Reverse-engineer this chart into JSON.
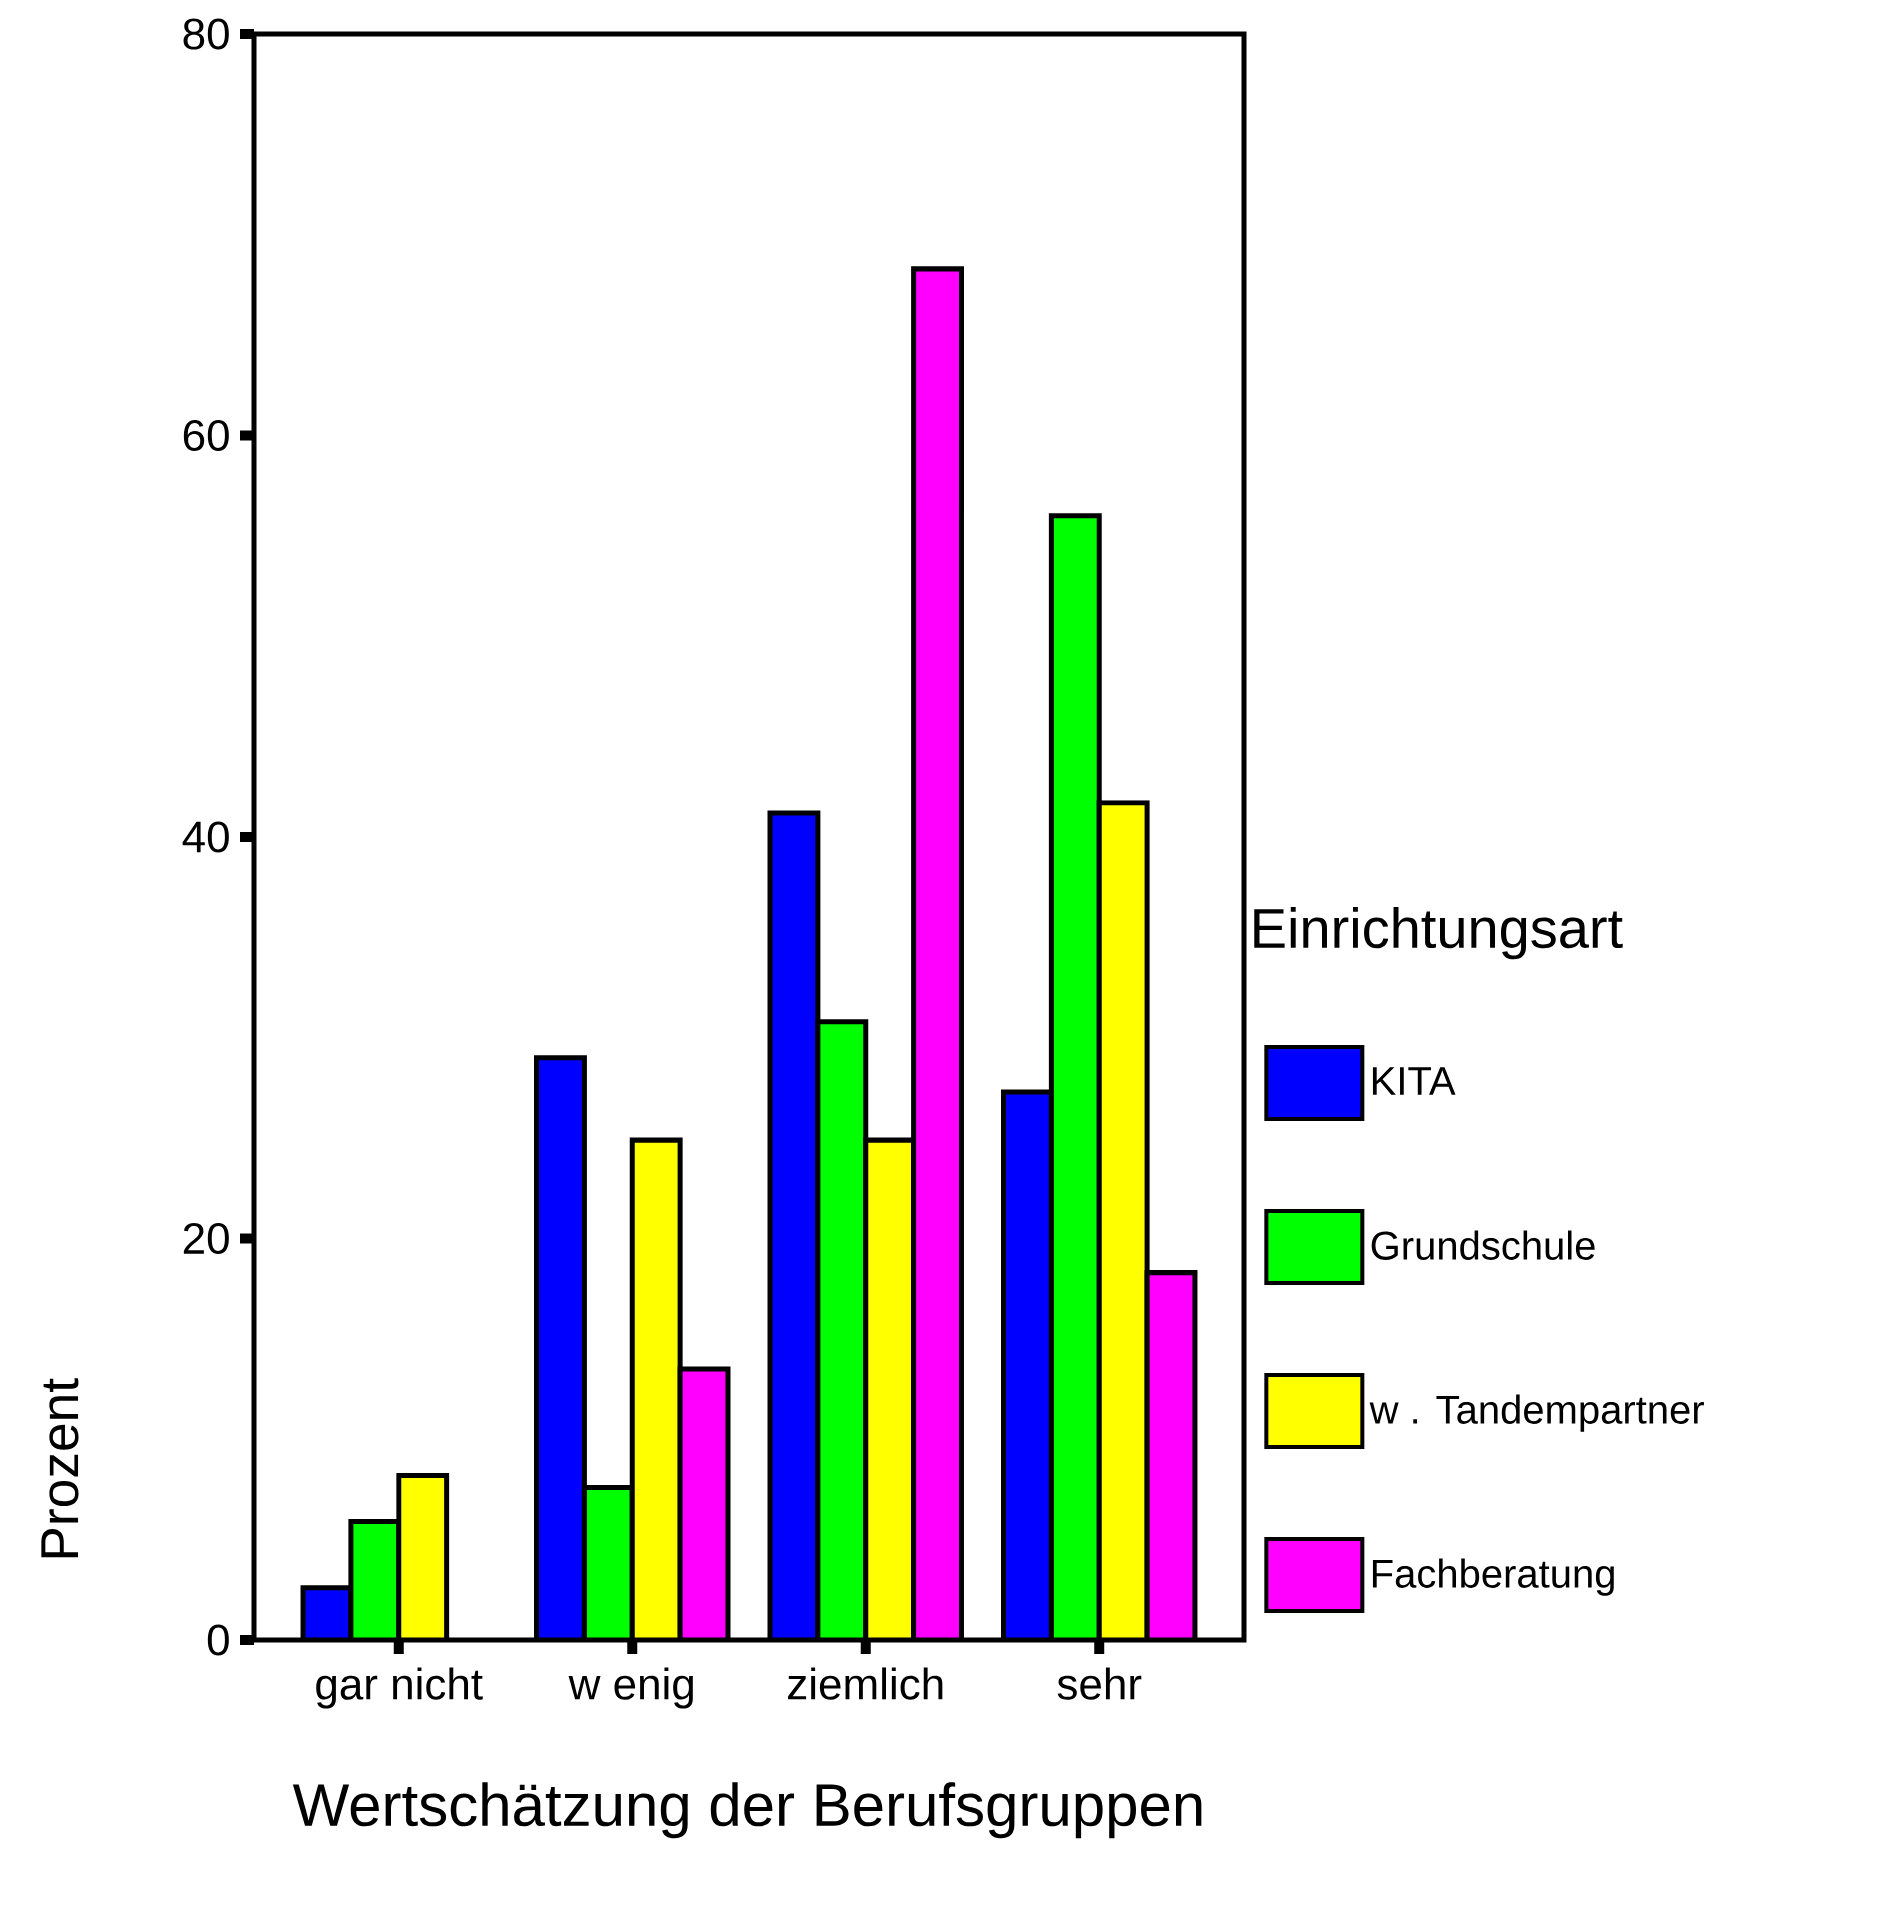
{
  "chart_data": {
    "type": "bar",
    "xlabel": "Wertschätzung der Berufsgruppen",
    "ylabel": "Prozent",
    "legend_title": "Einrichtungsart",
    "categories": [
      "gar nicht",
      "w enig",
      "ziemlich",
      "sehr"
    ],
    "series": [
      {
        "name": "KITA",
        "color": "#0000ff",
        "values": [
          2.6,
          29.0,
          41.2,
          27.3
        ]
      },
      {
        "name": "Grundschule",
        "color": "#00ff00",
        "values": [
          5.9,
          7.6,
          30.8,
          56.0
        ]
      },
      {
        "name": "w . Tandempartner",
        "color": "#ffff00",
        "values": [
          8.2,
          24.9,
          24.9,
          41.7
        ]
      },
      {
        "name": "Fachberatung",
        "color": "#ff00ff",
        "values": [
          null,
          13.5,
          68.3,
          18.3
        ]
      }
    ],
    "ylim": [
      0,
      80
    ],
    "yticks": [
      0,
      20,
      40,
      60,
      80
    ],
    "legend": "right"
  }
}
